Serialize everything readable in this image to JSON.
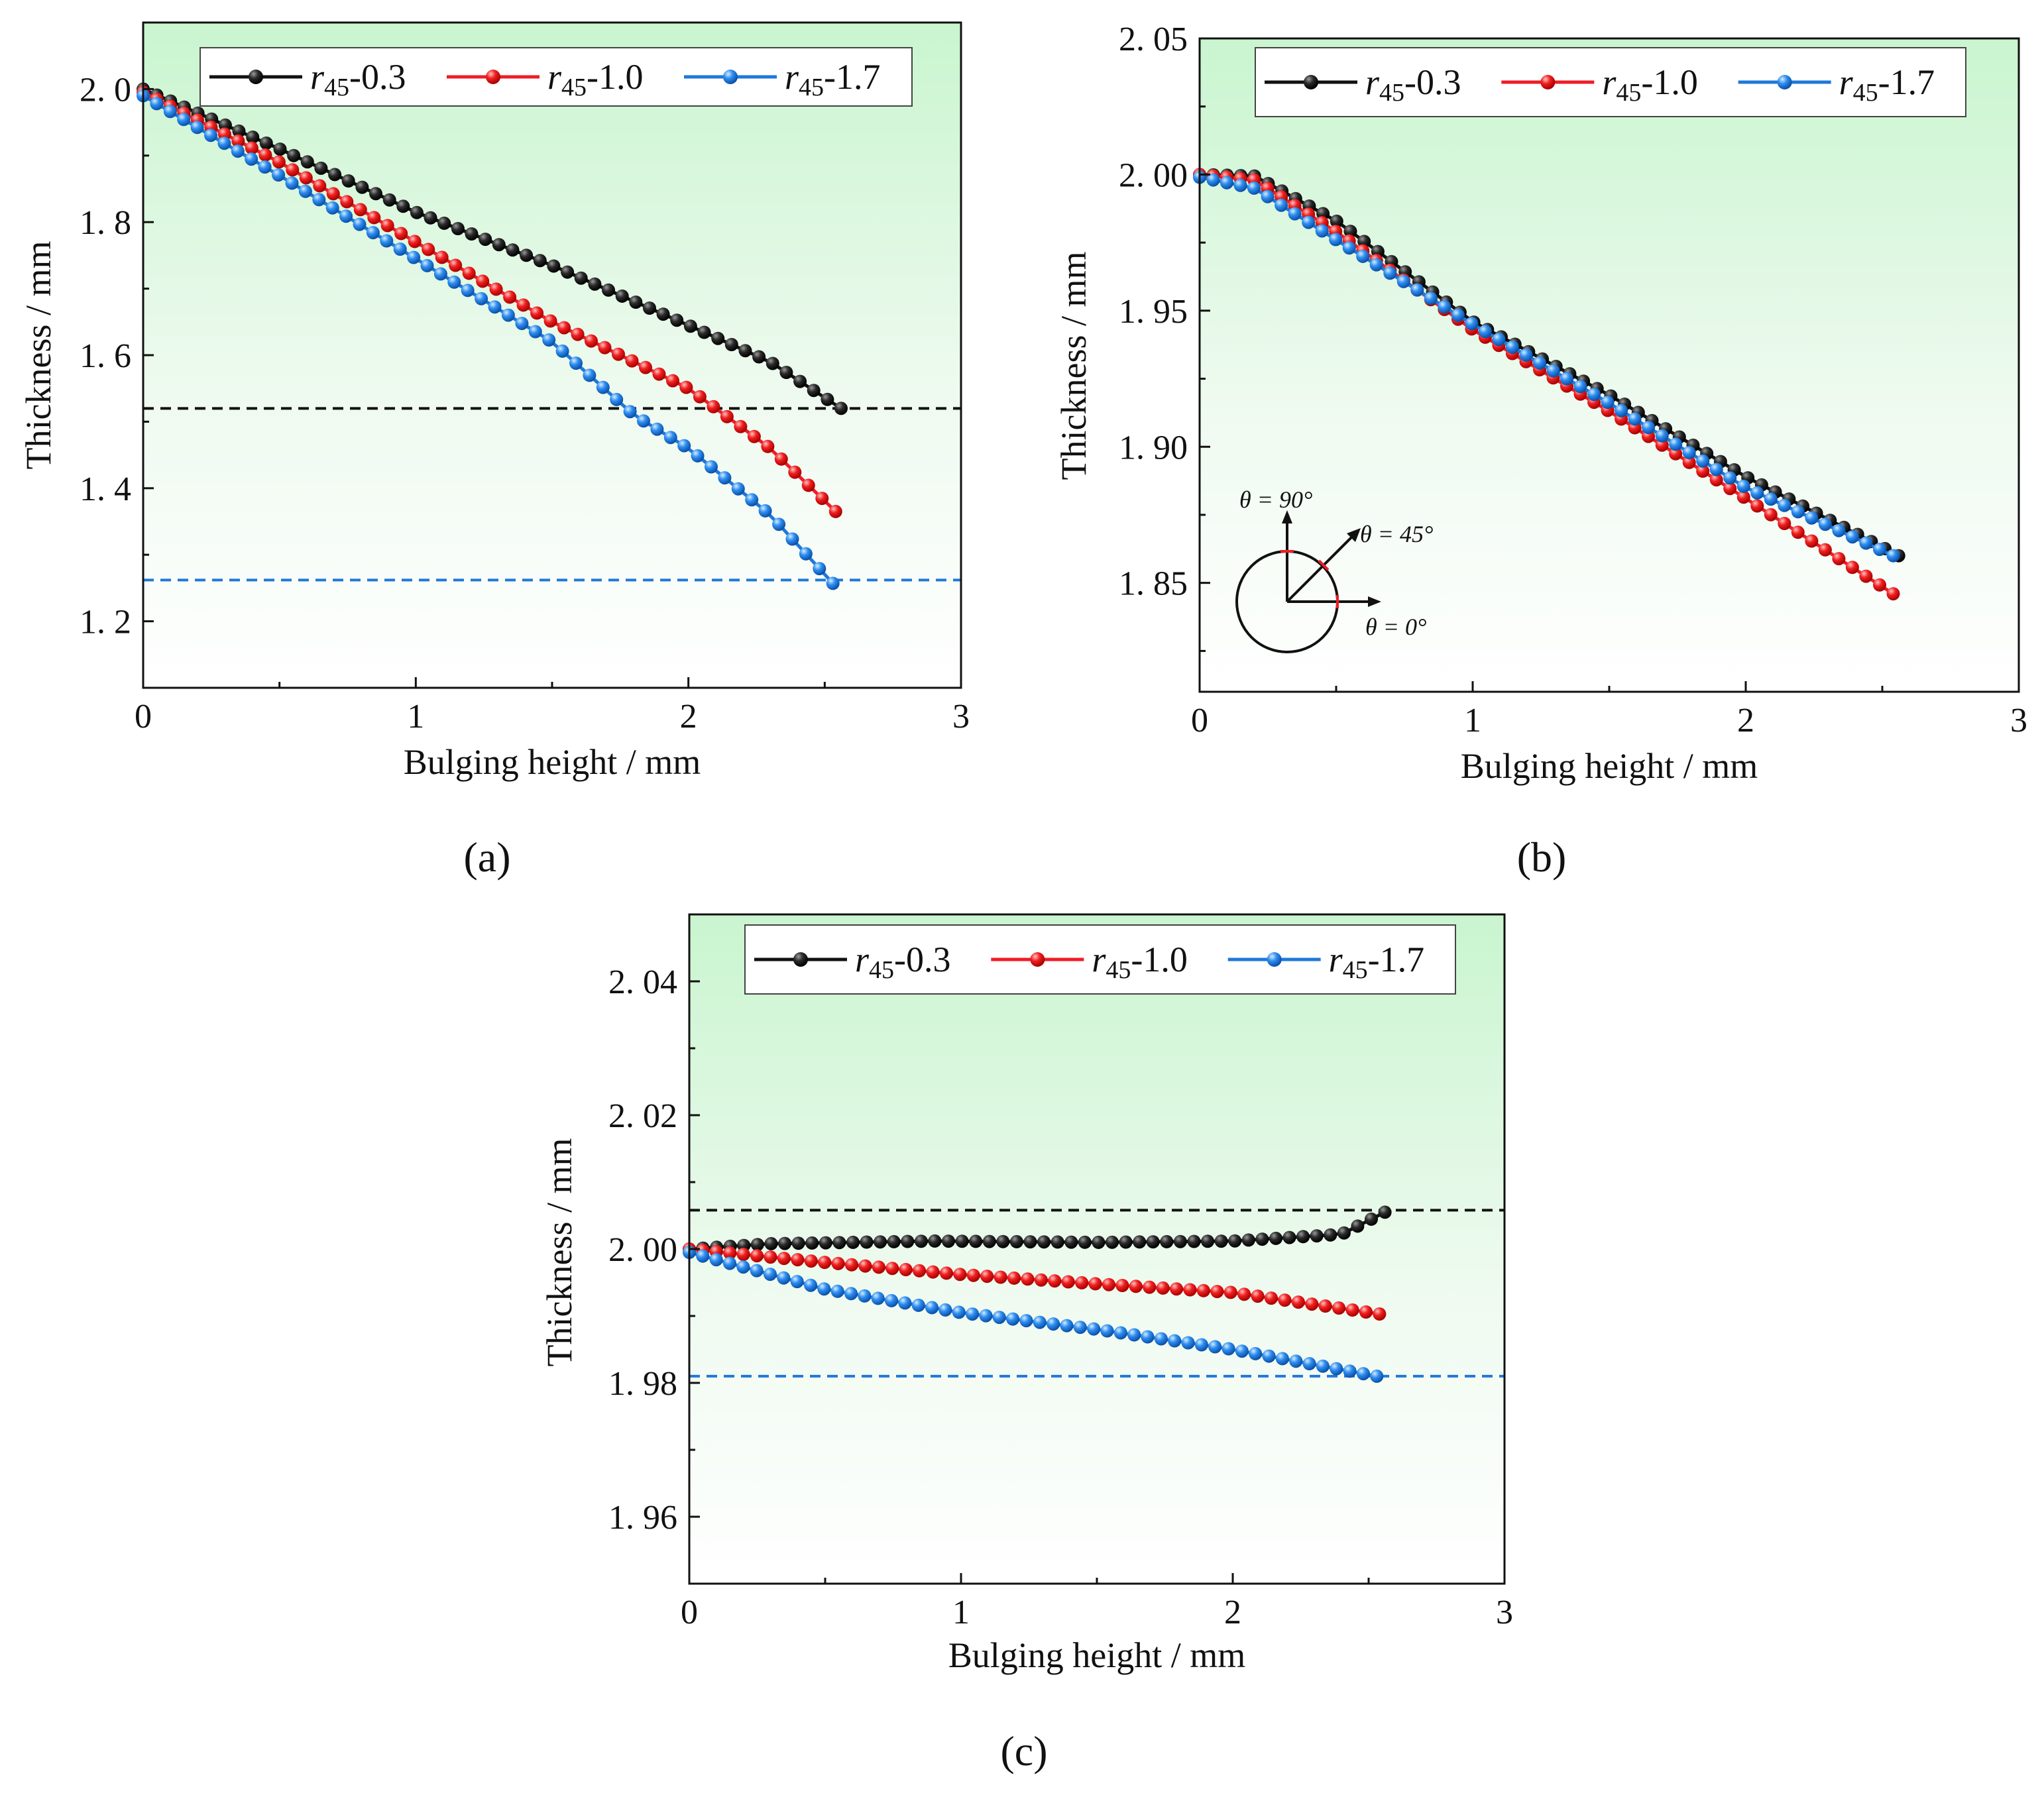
{
  "figure": {
    "panel_labels": [
      "(a)",
      "(b)",
      "(c)"
    ]
  },
  "colors": {
    "black_series": "#111111",
    "red_series": "#ee1c25",
    "blue_series": "#1f78d8",
    "bg_top": "#c9f5cf",
    "bg_bottom": "#ffffff"
  },
  "chart_data": [
    {
      "type": "line",
      "panel": "(a)",
      "xlabel": "Bulging height / mm",
      "ylabel": "Thickness / mm",
      "xlim": [
        0,
        3
      ],
      "ylim": [
        1.1,
        2.1
      ],
      "xticks": [
        0,
        1,
        2,
        3
      ],
      "xtick_labels": [
        "0",
        "1",
        "2",
        "3"
      ],
      "yticks": [
        1.2,
        1.4,
        1.6,
        1.8,
        2.0
      ],
      "ytick_labels": [
        "1. 2",
        "1. 4",
        "1. 6",
        "1. 8",
        "2. 0"
      ],
      "legend": [
        {
          "prefix": "r",
          "sub": "45",
          "suffix": "-0.3"
        },
        {
          "prefix": "r",
          "sub": "45",
          "suffix": "-1.0"
        },
        {
          "prefix": "r",
          "sub": "45",
          "suffix": "-1.7"
        }
      ],
      "hlines": [
        {
          "y": 1.52,
          "color": "black"
        },
        {
          "y": 1.262,
          "color": "blue"
        }
      ],
      "series": [
        {
          "name": "r45-0.3",
          "color": "black",
          "n": 52,
          "x_end": 2.56,
          "keypoints": [
            [
              0,
              2.0
            ],
            [
              0.5,
              1.91
            ],
            [
              1.0,
              1.815
            ],
            [
              1.5,
              1.735
            ],
            [
              2.0,
              1.645
            ],
            [
              2.3,
              1.59
            ],
            [
              2.56,
              1.52
            ]
          ]
        },
        {
          "name": "r45-1.0",
          "color": "red",
          "n": 52,
          "x_end": 2.54,
          "keypoints": [
            [
              0,
              1.995
            ],
            [
              0.5,
              1.89
            ],
            [
              1.0,
              1.77
            ],
            [
              1.5,
              1.65
            ],
            [
              2.0,
              1.55
            ],
            [
              2.3,
              1.46
            ],
            [
              2.54,
              1.365
            ]
          ]
        },
        {
          "name": "r45-1.7",
          "color": "blue",
          "n": 52,
          "x_end": 2.53,
          "keypoints": [
            [
              0,
              1.99
            ],
            [
              0.5,
              1.87
            ],
            [
              1.0,
              1.745
            ],
            [
              1.5,
              1.62
            ],
            [
              1.8,
              1.51
            ],
            [
              2.0,
              1.46
            ],
            [
              2.3,
              1.36
            ],
            [
              2.53,
              1.257
            ]
          ]
        }
      ]
    },
    {
      "type": "line",
      "panel": "(b)",
      "xlabel": "Bulging height / mm",
      "ylabel": "Thickness / mm",
      "xlim": [
        0,
        3
      ],
      "ylim": [
        1.81,
        2.05
      ],
      "xticks": [
        0,
        1,
        2,
        3
      ],
      "xtick_labels": [
        "0",
        "1",
        "2",
        "3"
      ],
      "yticks": [
        1.85,
        1.9,
        1.95,
        2.0,
        2.05
      ],
      "ytick_labels": [
        "1. 85",
        "1. 90",
        "1. 95",
        "2. 00",
        "2. 05"
      ],
      "legend": [
        {
          "prefix": "r",
          "sub": "45",
          "suffix": "-0.3"
        },
        {
          "prefix": "r",
          "sub": "45",
          "suffix": "-1.0"
        },
        {
          "prefix": "r",
          "sub": "45",
          "suffix": "-1.7"
        }
      ],
      "hlines": [],
      "inset": {
        "label_90": "θ = 90°",
        "label_45": "θ = 45°",
        "label_0": "θ = 0°"
      },
      "series": [
        {
          "name": "r45-0.3",
          "color": "black",
          "n": 52,
          "x_end": 2.56,
          "keypoints": [
            [
              0,
              2.0
            ],
            [
              0.2,
              1.9995
            ],
            [
              0.5,
              1.983
            ],
            [
              1.0,
              1.946
            ],
            [
              1.5,
              1.919
            ],
            [
              2.0,
              1.889
            ],
            [
              2.56,
              1.86
            ]
          ]
        },
        {
          "name": "r45-1.0",
          "color": "red",
          "n": 52,
          "x_end": 2.54,
          "keypoints": [
            [
              0,
              2.0
            ],
            [
              0.2,
              1.998
            ],
            [
              0.5,
              1.979
            ],
            [
              1.0,
              1.943
            ],
            [
              1.5,
              1.913
            ],
            [
              2.0,
              1.881
            ],
            [
              2.54,
              1.846
            ]
          ]
        },
        {
          "name": "r45-1.7",
          "color": "blue",
          "n": 52,
          "x_end": 2.54,
          "keypoints": [
            [
              0,
              1.999
            ],
            [
              0.2,
              1.995
            ],
            [
              0.5,
              1.976
            ],
            [
              1.0,
              1.945
            ],
            [
              1.5,
              1.916
            ],
            [
              2.0,
              1.885
            ],
            [
              2.54,
              1.86
            ]
          ]
        }
      ]
    },
    {
      "type": "line",
      "panel": "(c)",
      "xlabel": "Bulging height / mm",
      "ylabel": "Thickness / mm",
      "xlim": [
        0,
        3
      ],
      "ylim": [
        1.95,
        2.05
      ],
      "xticks": [
        0,
        1,
        2,
        3
      ],
      "xtick_labels": [
        "0",
        "1",
        "2",
        "3"
      ],
      "yticks": [
        1.96,
        1.98,
        2.0,
        2.02,
        2.04
      ],
      "ytick_labels": [
        "1. 96",
        "1. 98",
        "2. 00",
        "2. 02",
        "2. 04"
      ],
      "legend": [
        {
          "prefix": "r",
          "sub": "45",
          "suffix": "-0.3"
        },
        {
          "prefix": "r",
          "sub": "45",
          "suffix": "-1.0"
        },
        {
          "prefix": "r",
          "sub": "45",
          "suffix": "-1.7"
        }
      ],
      "hlines": [
        {
          "y": 2.0058,
          "color": "black"
        },
        {
          "y": 1.981,
          "color": "blue"
        }
      ],
      "series": [
        {
          "name": "r45-0.3",
          "color": "black",
          "n": 52,
          "x_end": 2.56,
          "keypoints": [
            [
              0,
              2.0
            ],
            [
              0.3,
              2.0008
            ],
            [
              0.9,
              2.0012
            ],
            [
              1.5,
              2.001
            ],
            [
              2.0,
              2.0012
            ],
            [
              2.4,
              2.0022
            ],
            [
              2.56,
              2.0055
            ]
          ]
        },
        {
          "name": "r45-1.0",
          "color": "red",
          "n": 52,
          "x_end": 2.54,
          "keypoints": [
            [
              0,
              2.0
            ],
            [
              0.5,
              1.998
            ],
            [
              1.0,
              1.9962
            ],
            [
              1.5,
              1.9948
            ],
            [
              2.0,
              1.9935
            ],
            [
              2.54,
              1.9903
            ]
          ]
        },
        {
          "name": "r45-1.7",
          "color": "blue",
          "n": 52,
          "x_end": 2.53,
          "keypoints": [
            [
              0,
              1.9995
            ],
            [
              0.5,
              1.994
            ],
            [
              1.0,
              1.9905
            ],
            [
              1.5,
              1.988
            ],
            [
              2.0,
              1.985
            ],
            [
              2.53,
              1.981
            ]
          ]
        }
      ]
    }
  ]
}
